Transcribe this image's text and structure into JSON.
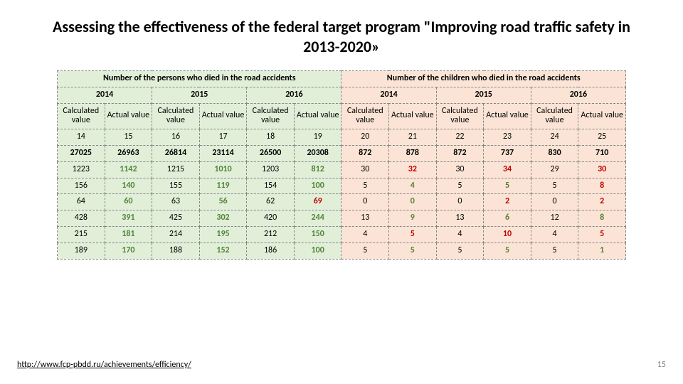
{
  "title": "Assessing the effectiveness of the federal target program \"Improving road traffic safety in 2013-2020»",
  "footer_link": "http://www.fcp-pbdd.ru/achievements/efficiency/",
  "page_number": "15",
  "table": {
    "group_headers": [
      "Number of the persons who died in the road accidents",
      "Number of the children who died in the road accidents"
    ],
    "year_headers": [
      "2014",
      "2015",
      "2016",
      "2014",
      "2015",
      "2016"
    ],
    "sub_headers": [
      "Calculated value",
      "Actual value",
      "Calculated value",
      "Actual value",
      "Calculated value",
      "Actual value",
      "Calculated value",
      "Actual value",
      "Calculated value",
      "Actual value",
      "Calculated value",
      "Actual value"
    ],
    "group_split": 6,
    "rows": [
      {
        "cells": [
          {
            "v": "14"
          },
          {
            "v": "15"
          },
          {
            "v": "16"
          },
          {
            "v": "17"
          },
          {
            "v": "18"
          },
          {
            "v": "19"
          },
          {
            "v": "20"
          },
          {
            "v": "21"
          },
          {
            "v": "22"
          },
          {
            "v": "23"
          },
          {
            "v": "24"
          },
          {
            "v": "25"
          }
        ]
      },
      {
        "cells": [
          {
            "v": "27025",
            "cls": "bold-black"
          },
          {
            "v": "26963",
            "cls": "bold-black"
          },
          {
            "v": "26814",
            "cls": "bold-black"
          },
          {
            "v": "23114",
            "cls": "bold-black"
          },
          {
            "v": "26500",
            "cls": "bold-black"
          },
          {
            "v": "20308",
            "cls": "bold-black"
          },
          {
            "v": "872",
            "cls": "bold-black"
          },
          {
            "v": "878",
            "cls": "bold-black"
          },
          {
            "v": "872",
            "cls": "bold-black"
          },
          {
            "v": "737",
            "cls": "bold-black"
          },
          {
            "v": "830",
            "cls": "bold-black"
          },
          {
            "v": "710",
            "cls": "bold-black"
          }
        ]
      },
      {
        "cells": [
          {
            "v": "1223"
          },
          {
            "v": "1142",
            "cls": "bold-green"
          },
          {
            "v": "1215"
          },
          {
            "v": "1010",
            "cls": "bold-green"
          },
          {
            "v": "1203"
          },
          {
            "v": "812",
            "cls": "bold-green"
          },
          {
            "v": "30"
          },
          {
            "v": "32",
            "cls": "bold-red"
          },
          {
            "v": "30"
          },
          {
            "v": "34",
            "cls": "bold-red"
          },
          {
            "v": "29"
          },
          {
            "v": "30",
            "cls": "bold-red"
          }
        ]
      },
      {
        "cells": [
          {
            "v": "156"
          },
          {
            "v": "140",
            "cls": "bold-green"
          },
          {
            "v": "155"
          },
          {
            "v": "119",
            "cls": "bold-green"
          },
          {
            "v": "154"
          },
          {
            "v": "100",
            "cls": "bold-green"
          },
          {
            "v": "5"
          },
          {
            "v": "4",
            "cls": "bold-green"
          },
          {
            "v": "5"
          },
          {
            "v": "5",
            "cls": "bold-green"
          },
          {
            "v": "5"
          },
          {
            "v": "8",
            "cls": "bold-red"
          }
        ]
      },
      {
        "cells": [
          {
            "v": "64"
          },
          {
            "v": "60",
            "cls": "bold-green"
          },
          {
            "v": "63"
          },
          {
            "v": "56",
            "cls": "bold-green"
          },
          {
            "v": "62"
          },
          {
            "v": "69",
            "cls": "bold-red"
          },
          {
            "v": "0"
          },
          {
            "v": "0",
            "cls": "bold-green"
          },
          {
            "v": "0"
          },
          {
            "v": "2",
            "cls": "bold-red"
          },
          {
            "v": "0"
          },
          {
            "v": "2",
            "cls": "bold-red"
          }
        ]
      },
      {
        "cells": [
          {
            "v": "428"
          },
          {
            "v": "391",
            "cls": "bold-green"
          },
          {
            "v": "425"
          },
          {
            "v": "302",
            "cls": "bold-green"
          },
          {
            "v": "420"
          },
          {
            "v": "244",
            "cls": "bold-green"
          },
          {
            "v": "13"
          },
          {
            "v": "9",
            "cls": "bold-green"
          },
          {
            "v": "13"
          },
          {
            "v": "6",
            "cls": "bold-green"
          },
          {
            "v": "12"
          },
          {
            "v": "8",
            "cls": "bold-green"
          }
        ]
      },
      {
        "cells": [
          {
            "v": "215"
          },
          {
            "v": "181",
            "cls": "bold-green"
          },
          {
            "v": "214"
          },
          {
            "v": "195",
            "cls": "bold-green"
          },
          {
            "v": "212"
          },
          {
            "v": "150",
            "cls": "bold-green"
          },
          {
            "v": "4"
          },
          {
            "v": "5",
            "cls": "bold-red"
          },
          {
            "v": "4"
          },
          {
            "v": "10",
            "cls": "bold-red"
          },
          {
            "v": "4"
          },
          {
            "v": "5",
            "cls": "bold-red"
          }
        ]
      },
      {
        "cells": [
          {
            "v": "189"
          },
          {
            "v": "170",
            "cls": "bold-green"
          },
          {
            "v": "188"
          },
          {
            "v": "152",
            "cls": "bold-green"
          },
          {
            "v": "186"
          },
          {
            "v": "100",
            "cls": "bold-green"
          },
          {
            "v": "5"
          },
          {
            "v": "5",
            "cls": "bold-green"
          },
          {
            "v": "5"
          },
          {
            "v": "5",
            "cls": "bold-green"
          },
          {
            "v": "5"
          },
          {
            "v": "1",
            "cls": "bold-green"
          }
        ]
      }
    ]
  }
}
